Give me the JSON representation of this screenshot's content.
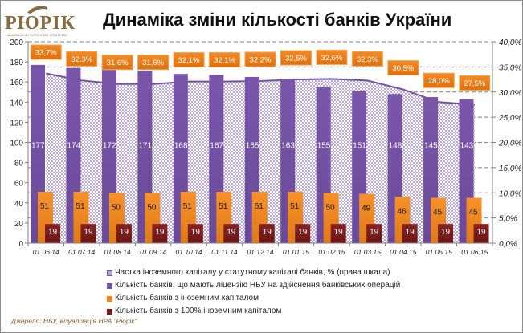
{
  "logo": {
    "name": "РЮРІК",
    "subtitle": "НАЦІОНАЛЬНЕ РЕЙТИНГОВЕ АГЕНТСТВО"
  },
  "colors": {
    "purple": "#7452a3",
    "purple_light": "#b8a8d0",
    "orange": "#f5861f",
    "dark_red": "#7a1c1c",
    "label_box": "#f07f1c",
    "logo": "#8a6a3e",
    "source": "#8a5a2a"
  },
  "source": "Джерело: НБУ, візуалізація НРА \"Рюрік\"",
  "chart_data": {
    "type": "bar",
    "title": "Динаміка зміни кількості банків України",
    "categories": [
      "01.06.14",
      "01.07.14",
      "01.08.14",
      "01.09.14",
      "01.10.14",
      "01.11.14",
      "01.12.14",
      "01.01.15",
      "01.02.15",
      "01.03.15",
      "01.04.15",
      "01.05.15",
      "01.06.15"
    ],
    "ylim": [
      0,
      200
    ],
    "y_ticks": [
      "0",
      "20",
      "40",
      "60",
      "80",
      "100",
      "120",
      "140",
      "160",
      "180",
      "200"
    ],
    "y2lim": [
      0,
      40
    ],
    "y2_ticks": [
      "0,0%",
      "5,0%",
      "10,0%",
      "15,0%",
      "20,0%",
      "25,0%",
      "30,0%",
      "35,0%",
      "40,0%"
    ],
    "grid": "horizontal dashed (right axis)",
    "legend_position": "bottom",
    "series": [
      {
        "name": "Частка іноземного капіталу у статутному капіталі банків, % (права шкала)",
        "type": "area",
        "axis": "right",
        "values": [
          33.7,
          32.3,
          31.6,
          31.6,
          32.1,
          32.1,
          32.2,
          32.5,
          32.6,
          32.3,
          30.5,
          28.0,
          27.5
        ],
        "labels": [
          "33,7%",
          "32,3%",
          "31,6%",
          "31,6%",
          "32,1%",
          "32,1%",
          "32,2%",
          "32,5%",
          "32,6%",
          "32,3%",
          "30,5%",
          "28,0%",
          "27,5%"
        ]
      },
      {
        "name": "Кількість банків, що мають ліцензію НБУ на здійснення банківських операцій",
        "type": "bar",
        "axis": "left",
        "values": [
          177,
          174,
          172,
          171,
          168,
          167,
          165,
          163,
          155,
          151,
          148,
          145,
          143
        ],
        "labels": [
          "177",
          "174",
          "172",
          "171",
          "168",
          "167",
          "165",
          "163",
          "155",
          "151",
          "148",
          "145",
          "143"
        ]
      },
      {
        "name": "Кількість банків з іноземним капіталом",
        "type": "bar",
        "axis": "left",
        "values": [
          51,
          51,
          50,
          50,
          51,
          51,
          51,
          51,
          50,
          49,
          46,
          45,
          45
        ],
        "labels": [
          "51",
          "51",
          "50",
          "50",
          "51",
          "51",
          "51",
          "51",
          "50",
          "49",
          "46",
          "45",
          "45"
        ]
      },
      {
        "name": "Кількість банків з 100% іноземним капіталом",
        "type": "bar",
        "axis": "left",
        "values": [
          19,
          19,
          19,
          19,
          19,
          19,
          19,
          19,
          19,
          19,
          19,
          19,
          19
        ],
        "labels": [
          "19",
          "19",
          "19",
          "19",
          "19",
          "19",
          "19",
          "19",
          "19",
          "19",
          "19",
          "19",
          "19"
        ]
      }
    ]
  }
}
